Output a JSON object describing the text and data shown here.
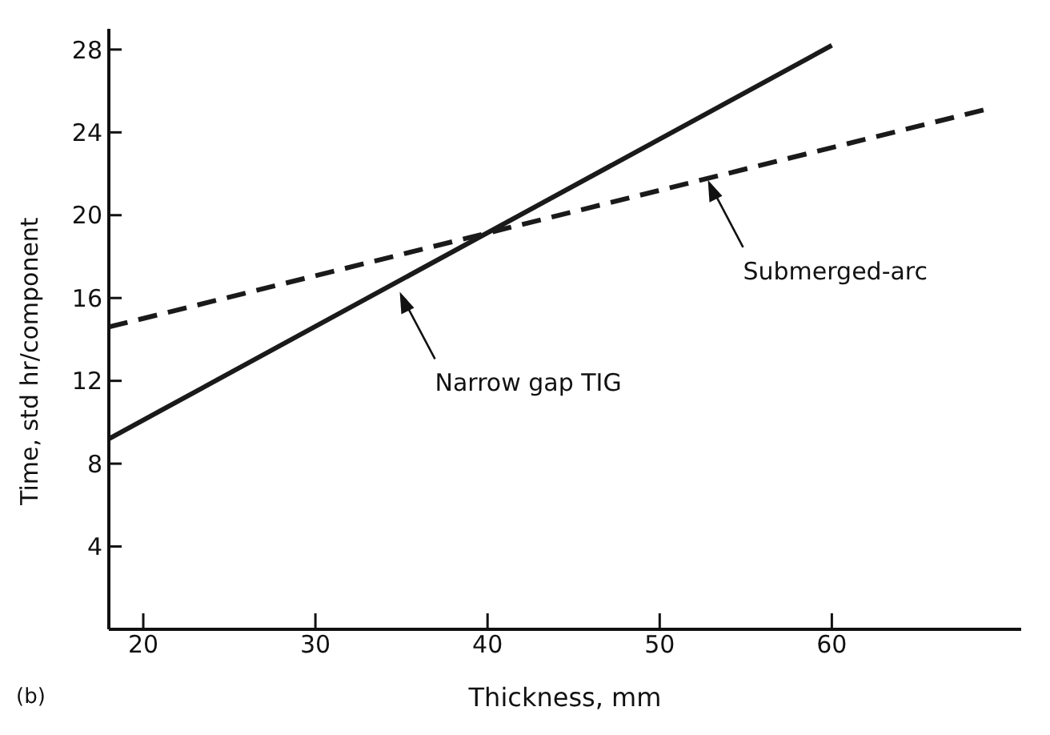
{
  "chart_data": {
    "type": "line",
    "xlabel": "Thickness, mm",
    "ylabel": "Time, std hr/component",
    "xlim": [
      18,
      71
    ],
    "xticks": [
      20,
      30,
      40,
      50,
      60
    ],
    "ylim": [
      0,
      29
    ],
    "yticks": [
      4,
      8,
      12,
      16,
      20,
      24,
      28
    ],
    "series": [
      {
        "x": [
          18,
          60
        ],
        "values": [
          9.2,
          28.2
        ],
        "color": "#1a1a1a",
        "line_style": "solid"
      },
      {
        "x": [
          18,
          68.9
        ],
        "values": [
          14.6,
          25.1
        ],
        "color": "#1a1a1a",
        "line_style": "dashed"
      }
    ],
    "annotations": [
      {
        "text": "Narrow gap TIG",
        "x": 34.9,
        "y": 16.3
      },
      {
        "text": "Submerged-arc",
        "x": 52.8,
        "y": 21.7
      },
      "(b)"
    ],
    "marker": "none"
  }
}
